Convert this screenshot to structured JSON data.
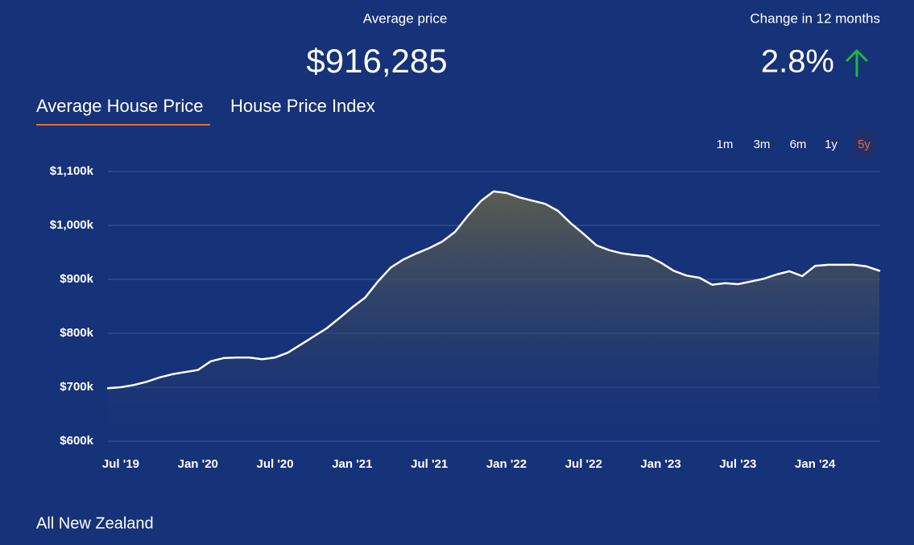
{
  "header": {
    "average_label": "Average price",
    "average_value": "$916,285",
    "change_label": "Change in 12 months",
    "change_value": "2.8%"
  },
  "tabs": [
    "Average House Price",
    "House Price Index"
  ],
  "ranges": [
    "1m",
    "3m",
    "6m",
    "1y",
    "5y"
  ],
  "footer": "All New Zealand",
  "chart_data": {
    "type": "line",
    "color": "#ffffff",
    "grid": true,
    "categories": [
      null,
      "Jul '19",
      null,
      null,
      null,
      null,
      null,
      "Jan '20",
      null,
      null,
      null,
      null,
      null,
      "Jul '20",
      null,
      null,
      null,
      null,
      null,
      "Jan '21",
      null,
      null,
      null,
      null,
      null,
      "Jul '21",
      null,
      null,
      null,
      null,
      null,
      "Jan '22",
      null,
      null,
      null,
      null,
      null,
      "Jul '22",
      null,
      null,
      null,
      null,
      null,
      "Jan '23",
      null,
      null,
      null,
      null,
      null,
      "Jul '23",
      null,
      null,
      null,
      null,
      null,
      "Jan '24",
      null,
      null,
      null,
      null,
      null
    ],
    "values": [
      698,
      700,
      704,
      710,
      718,
      724,
      728,
      732,
      748,
      754,
      755,
      755,
      752,
      755,
      764,
      779,
      794,
      809,
      828,
      848,
      866,
      896,
      922,
      937,
      948,
      958,
      970,
      988,
      1018,
      1045,
      1063,
      1060,
      1052,
      1046,
      1040,
      1027,
      1004,
      984,
      963,
      954,
      948,
      945,
      943,
      931,
      916,
      907,
      903,
      890,
      893,
      891,
      896,
      901,
      909,
      915,
      906,
      925,
      927,
      927,
      927,
      924,
      916
    ],
    "ylim": [
      600,
      1100
    ],
    "yticks": [
      {
        "value": 600,
        "label": "$600k"
      },
      {
        "value": 700,
        "label": "$700k"
      },
      {
        "value": 800,
        "label": "$800k"
      },
      {
        "value": 900,
        "label": "$900k"
      },
      {
        "value": 1000,
        "label": "$1,000k"
      },
      {
        "value": 1100,
        "label": "$1,100k"
      }
    ]
  }
}
